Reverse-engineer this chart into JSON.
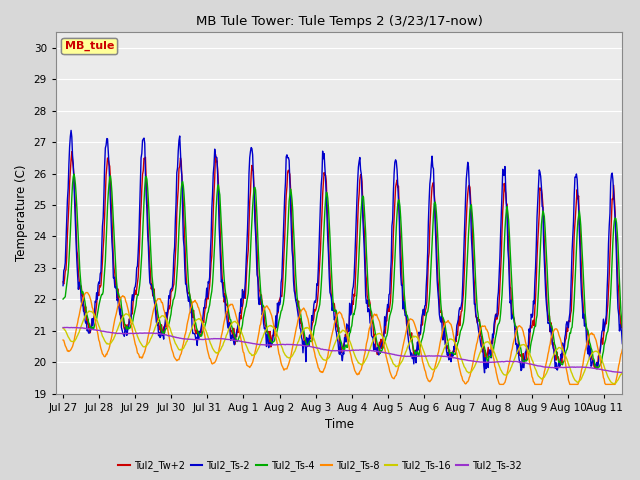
{
  "title": "MB Tule Tower: Tule Temps 2 (3/23/17-now)",
  "xlabel": "Time",
  "ylabel": "Temperature (C)",
  "ylim": [
    19.0,
    30.5
  ],
  "yticks": [
    19.0,
    20.0,
    21.0,
    22.0,
    23.0,
    24.0,
    25.0,
    26.0,
    27.0,
    28.0,
    29.0,
    30.0
  ],
  "xlim_days": [
    -0.2,
    15.5
  ],
  "xtick_labels": [
    "Jul 27",
    "Jul 28",
    "Jul 29",
    "Jul 30",
    "Jul 31",
    "Aug 1",
    "Aug 2",
    "Aug 3",
    "Aug 4",
    "Aug 5",
    "Aug 6",
    "Aug 7",
    "Aug 8",
    "Aug 9",
    "Aug 10",
    "Aug 11"
  ],
  "xtick_positions": [
    0,
    1,
    2,
    3,
    4,
    5,
    6,
    7,
    8,
    9,
    10,
    11,
    12,
    13,
    14,
    15
  ],
  "bg_color": "#d8d8d8",
  "plot_bg_color": "#ebebeb",
  "grid_color": "white",
  "legend_label": "MB_tule",
  "legend_box_color": "#ffff99",
  "legend_text_color": "#cc0000",
  "series_colors": [
    "#cc0000",
    "#0000cc",
    "#00aa00",
    "#ff8800",
    "#cccc00",
    "#9933cc"
  ],
  "series_labels": [
    "Tul2_Tw+2",
    "Tul2_Ts-2",
    "Tul2_Ts-4",
    "Tul2_Ts-8",
    "Tul2_Ts-16",
    "Tul2_Ts-32"
  ],
  "series_linewidths": [
    1.0,
    1.0,
    1.0,
    1.0,
    1.0,
    1.0
  ]
}
